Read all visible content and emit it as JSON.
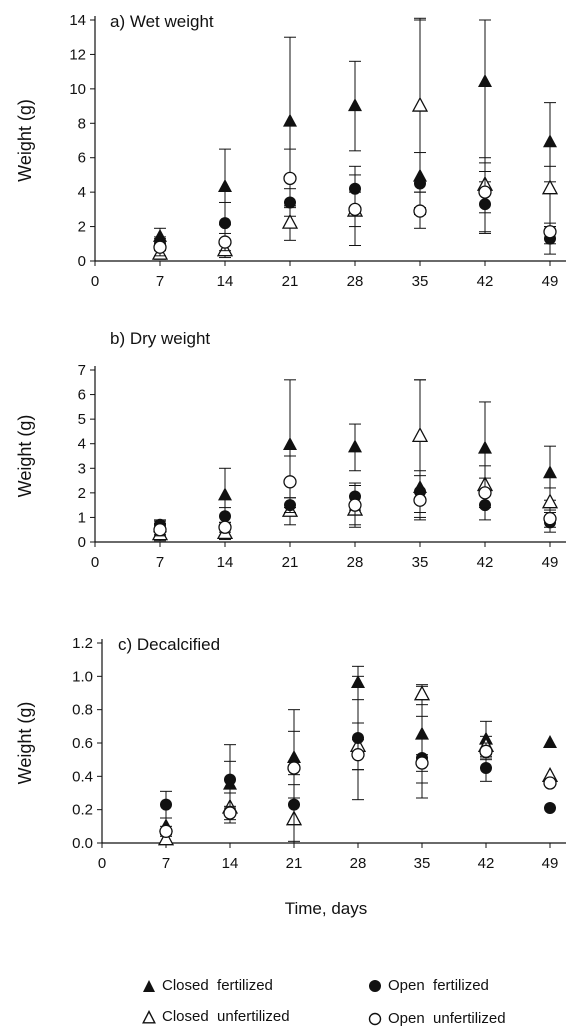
{
  "chart_data": [
    {
      "type": "scatter",
      "title": "a) Wet weight",
      "ylabel": "Weight (g)",
      "xlabel": "",
      "x_ticks": [
        0,
        7,
        14,
        21,
        28,
        35,
        42,
        49
      ],
      "y_ticks": [
        "0",
        "2",
        "4",
        "6",
        "8",
        "10",
        "12",
        "14"
      ],
      "ylim": [
        0,
        14
      ],
      "xlim": [
        0,
        49
      ],
      "series": [
        {
          "name": "Closed fertilized",
          "x": [
            7,
            14,
            21,
            28,
            35,
            42,
            49
          ],
          "y": [
            1.4,
            4.3,
            8.1,
            9.0,
            4.9,
            10.4,
            6.9
          ],
          "err_hi": [
            1.9,
            6.5,
            13.0,
            11.6,
            14.1,
            14.0,
            9.2
          ],
          "err_lo": [
            0.9,
            2.1,
            3.2,
            6.4,
            3.1,
            4.6,
            4.6
          ]
        },
        {
          "name": "Closed unfertilized",
          "x": [
            7,
            14,
            21,
            28,
            35,
            42,
            49
          ],
          "y": [
            0.4,
            0.6,
            2.2,
            2.9,
            9.0,
            4.4,
            4.2
          ],
          "err_hi": [
            0.7,
            1.0,
            3.2,
            5.0,
            14.0,
            6.0,
            5.5
          ],
          "err_lo": [
            0.1,
            0.2,
            1.2,
            0.9,
            4.0,
            1.6,
            2.0
          ]
        },
        {
          "name": "Open fertilized",
          "x": [
            7,
            14,
            21,
            28,
            35,
            42,
            49
          ],
          "y": [
            1.0,
            2.2,
            3.4,
            4.2,
            4.5,
            3.3,
            1.3
          ],
          "err_hi": [
            1.4,
            3.4,
            4.2,
            5.5,
            6.3,
            5.7,
            2.2
          ],
          "err_lo": [
            0.6,
            1.0,
            2.6,
            2.9,
            2.7,
            1.7,
            0.4
          ]
        },
        {
          "name": "Open unfertilized",
          "x": [
            7,
            14,
            21,
            28,
            35,
            42,
            49
          ],
          "y": [
            0.8,
            1.1,
            4.8,
            3.0,
            2.9,
            4.0,
            1.7
          ],
          "err_hi": [
            1.3,
            1.6,
            6.5,
            4.0,
            4.0,
            5.2,
            2.0
          ],
          "err_lo": [
            0.3,
            0.6,
            3.1,
            2.0,
            1.9,
            2.8,
            1.0
          ]
        }
      ]
    },
    {
      "type": "scatter",
      "title": "b) Dry weight",
      "ylabel": "Weight (g)",
      "xlabel": "",
      "x_ticks": [
        0,
        7,
        14,
        21,
        28,
        35,
        42,
        49
      ],
      "y_ticks": [
        "0",
        "1",
        "2",
        "3",
        "4",
        "5",
        "6",
        "7"
      ],
      "ylim": [
        0,
        7
      ],
      "xlim": [
        0,
        49
      ],
      "series": [
        {
          "name": "Closed fertilized",
          "x": [
            7,
            14,
            21,
            28,
            35,
            42,
            49
          ],
          "y": [
            0.6,
            1.9,
            3.95,
            3.85,
            2.2,
            3.8,
            2.8
          ],
          "err_hi": [
            0.9,
            3.0,
            6.6,
            4.8,
            6.6,
            5.7,
            3.9
          ],
          "err_lo": [
            0.3,
            0.8,
            1.4,
            2.9,
            1.0,
            1.9,
            1.7
          ]
        },
        {
          "name": "Closed unfertilized",
          "x": [
            7,
            14,
            21,
            28,
            35,
            42,
            49
          ],
          "y": [
            0.3,
            0.35,
            1.25,
            1.3,
            4.3,
            2.3,
            1.6
          ],
          "err_hi": [
            0.6,
            0.7,
            1.8,
            2.3,
            6.6,
            3.1,
            2.2
          ],
          "err_lo": [
            0.05,
            0.1,
            0.7,
            0.6,
            2.0,
            1.5,
            1.0
          ]
        },
        {
          "name": "Open fertilized",
          "x": [
            7,
            14,
            21,
            28,
            35,
            42,
            49
          ],
          "y": [
            0.7,
            1.05,
            1.5,
            1.85,
            2.05,
            1.5,
            0.8
          ],
          "err_hi": [
            0.85,
            1.4,
            1.8,
            2.4,
            2.9,
            2.0,
            1.2
          ],
          "err_lo": [
            0.55,
            0.7,
            1.2,
            1.3,
            1.2,
            0.9,
            0.4
          ]
        },
        {
          "name": "Open unfertilized",
          "x": [
            7,
            14,
            21,
            28,
            35,
            42,
            49
          ],
          "y": [
            0.5,
            0.6,
            2.45,
            1.5,
            1.7,
            2.0,
            0.95
          ],
          "err_hi": [
            0.75,
            0.8,
            3.5,
            2.3,
            2.7,
            2.6,
            1.3
          ],
          "err_lo": [
            0.25,
            0.4,
            1.4,
            0.7,
            0.9,
            1.4,
            0.6
          ]
        }
      ]
    },
    {
      "type": "scatter",
      "title": "c) Decalcified",
      "ylabel": "Weight (g)",
      "xlabel": "Time, days",
      "x_ticks": [
        0,
        7,
        14,
        21,
        28,
        35,
        42,
        49
      ],
      "y_ticks": [
        "0.0",
        "0.2",
        "0.4",
        "0.6",
        "0.8",
        "1.0",
        "1.2"
      ],
      "ylim": [
        0,
        1.2
      ],
      "xlim": [
        0,
        49
      ],
      "series": [
        {
          "name": "Closed fertilized",
          "x": [
            7,
            14,
            21,
            28,
            35,
            42,
            49
          ],
          "y": [
            0.1,
            0.35,
            0.51,
            0.96,
            0.65,
            0.62,
            0.6
          ],
          "err_hi": [
            0.15,
            0.49,
            0.67,
            1.06,
            0.94,
            0.73,
            null
          ],
          "err_lo": [
            0.05,
            0.21,
            0.35,
            0.86,
            0.36,
            0.51,
            null
          ]
        },
        {
          "name": "Closed unfertilized",
          "x": [
            7,
            14,
            21,
            28,
            35,
            42,
            49
          ],
          "y": [
            0.02,
            0.21,
            0.14,
            0.58,
            0.89,
            0.58,
            0.4
          ],
          "err_hi": [
            0.05,
            0.3,
            0.27,
            0.72,
            0.95,
            0.64,
            null
          ],
          "err_lo": [
            0.0,
            0.12,
            0.01,
            0.44,
            0.83,
            0.52,
            null
          ]
        },
        {
          "name": "Open fertilized",
          "x": [
            7,
            14,
            21,
            28,
            35,
            42,
            49
          ],
          "y": [
            0.23,
            0.38,
            0.23,
            0.63,
            0.51,
            0.45,
            0.21
          ],
          "err_hi": [
            0.31,
            0.59,
            0.8,
            1.0,
            0.76,
            0.53,
            null
          ],
          "err_lo": [
            0.15,
            0.17,
            0.0,
            0.26,
            0.27,
            0.37,
            null
          ]
        },
        {
          "name": "Open unfertilized",
          "x": [
            7,
            14,
            21,
            28,
            35,
            42,
            49
          ],
          "y": [
            0.07,
            0.18,
            0.45,
            0.53,
            0.48,
            0.55,
            0.36
          ],
          "err_hi": [
            0.1,
            0.22,
            0.49,
            0.62,
            0.53,
            0.6,
            null
          ],
          "err_lo": [
            0.04,
            0.14,
            0.41,
            0.44,
            0.43,
            0.5,
            null
          ]
        }
      ]
    }
  ],
  "legend": {
    "items": [
      {
        "label": "Closed  fertilized",
        "symbol": "filled-triangle-icon"
      },
      {
        "label": "Open  fertilized",
        "symbol": "filled-circle-icon"
      },
      {
        "label": "Closed  unfertilized",
        "symbol": "open-triangle-icon"
      },
      {
        "label": "Open  unfertilized",
        "symbol": "open-circle-icon"
      }
    ]
  },
  "colors": {
    "ink": "#111111",
    "background": "#ffffff"
  }
}
